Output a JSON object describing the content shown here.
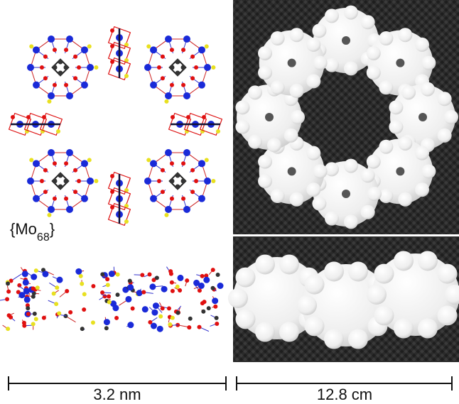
{
  "formula": {
    "open": "{Mo",
    "subscript": "68",
    "close": "}"
  },
  "scale_bars": [
    {
      "label": "3.2 nm"
    },
    {
      "label": "12.8 cm"
    }
  ]
}
